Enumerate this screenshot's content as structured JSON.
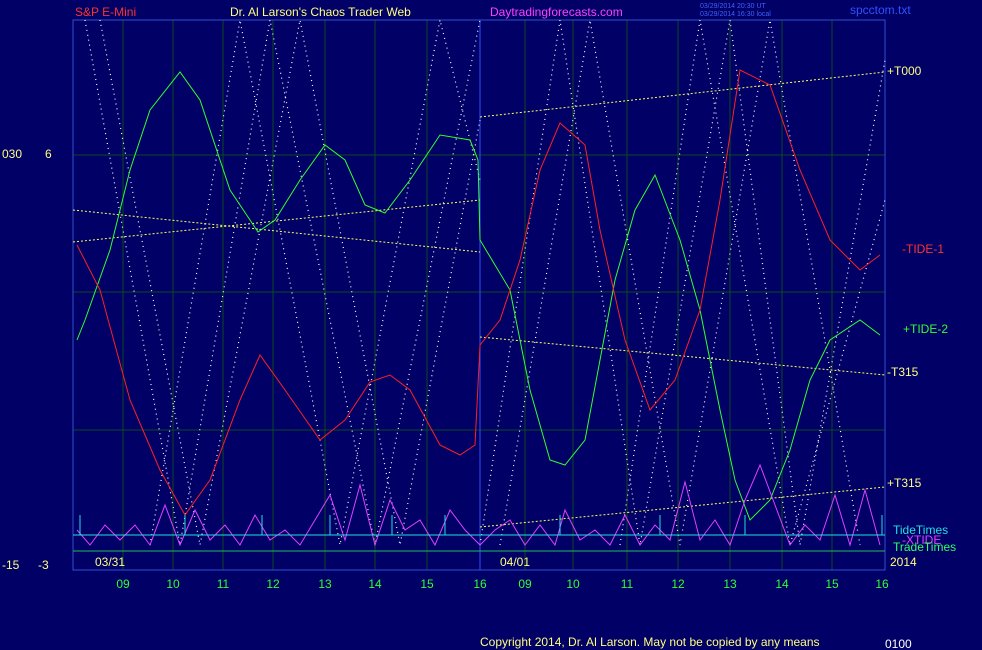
{
  "header": {
    "symbol": "S&P E-Mini",
    "title": "Dr. Al Larson's Chaos Trader Web",
    "site": "Daytradingforecasts.com",
    "time_ut": "03/29/2014 20:30 UT",
    "time_local": "03/29/2014 16:30 local",
    "file": "spcctom.txt"
  },
  "left_scale": {
    "top": [
      "030",
      "6"
    ],
    "bottom": [
      "-15",
      "-3"
    ]
  },
  "series_labels": {
    "t000": "+T000",
    "tide1": "-TIDE-1",
    "tide2": "+TIDE-2",
    "t315a": "-T315",
    "t315b": "+T315",
    "tide_times": "TideTimes",
    "xtide": "-XTIDE",
    "trade_times": "TradeTimes"
  },
  "dates": {
    "first": "03/31",
    "second": "04/01",
    "year": "2014"
  },
  "hours": [
    "09",
    "10",
    "11",
    "12",
    "13",
    "14",
    "15",
    "16",
    "09",
    "10",
    "11",
    "12",
    "13",
    "14",
    "15",
    "16"
  ],
  "footer": {
    "copyright": "Copyright 2014, Dr. Al Larson. May not be copied by any means",
    "code": "0100"
  }
}
